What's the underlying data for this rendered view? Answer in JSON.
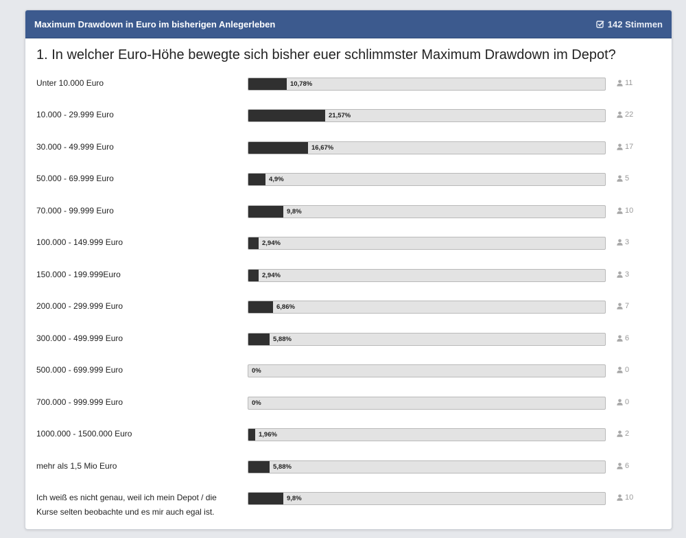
{
  "poll": {
    "title": "Maximum Drawdown in Euro im bisherigen Anlegerleben",
    "votes_label": "142 Stimmen",
    "question": "1. In welcher Euro-Höhe bewegte sich bisher euer schlimmster Maximum Drawdown im Depot?",
    "options": [
      {
        "label": "Unter 10.000 Euro",
        "percent_label": "10,78%",
        "percent": 10.78,
        "count": "11"
      },
      {
        "label": "10.000 - 29.999 Euro",
        "percent_label": "21,57%",
        "percent": 21.57,
        "count": "22"
      },
      {
        "label": "30.000 - 49.999 Euro",
        "percent_label": "16,67%",
        "percent": 16.67,
        "count": "17"
      },
      {
        "label": "50.000 - 69.999 Euro",
        "percent_label": "4,9%",
        "percent": 4.9,
        "count": "5"
      },
      {
        "label": "70.000 - 99.999 Euro",
        "percent_label": "9,8%",
        "percent": 9.8,
        "count": "10"
      },
      {
        "label": "100.000 - 149.999 Euro",
        "percent_label": "2,94%",
        "percent": 2.94,
        "count": "3"
      },
      {
        "label": "150.000 - 199.999Euro",
        "percent_label": "2,94%",
        "percent": 2.94,
        "count": "3"
      },
      {
        "label": "200.000 - 299.999 Euro",
        "percent_label": "6,86%",
        "percent": 6.86,
        "count": "7"
      },
      {
        "label": "300.000 - 499.999 Euro",
        "percent_label": "5,88%",
        "percent": 5.88,
        "count": "6"
      },
      {
        "label": "500.000 - 699.999 Euro",
        "percent_label": "0%",
        "percent": 0,
        "count": "0"
      },
      {
        "label": "700.000 - 999.999 Euro",
        "percent_label": "0%",
        "percent": 0,
        "count": "0"
      },
      {
        "label": "1000.000 - 1500.000 Euro",
        "percent_label": "1,96%",
        "percent": 1.96,
        "count": "2"
      },
      {
        "label": "mehr als 1,5 Mio Euro",
        "percent_label": "5,88%",
        "percent": 5.88,
        "count": "6"
      },
      {
        "label": "Ich weiß es nicht genau, weil ich mein Depot / die Kurse selten beobachte und es mir auch egal ist.",
        "percent_label": "9,8%",
        "percent": 9.8,
        "count": "10"
      }
    ]
  },
  "colors": {
    "header_bg": "#3c5a8e",
    "bar_fill": "#303030",
    "bar_track": "#e3e3e3"
  },
  "icons": {
    "votes": "check-square-icon",
    "count": "user-icon"
  }
}
